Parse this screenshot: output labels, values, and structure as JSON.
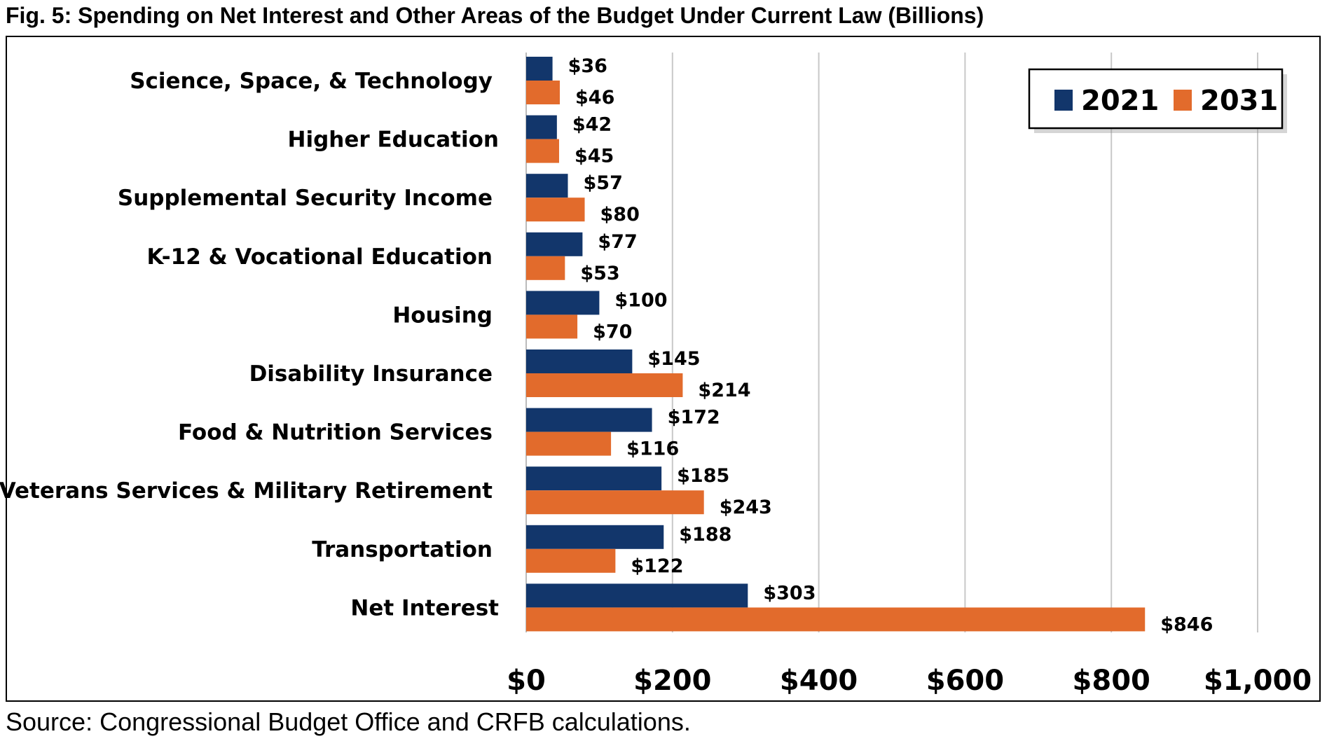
{
  "title": "Fig. 5: Spending on Net Interest and Other Areas of the Budget Under Current Law (Billions)",
  "source": "Source: Congressional Budget Office and CRFB calculations.",
  "chart_data": {
    "type": "bar",
    "orientation": "horizontal",
    "title": "Fig. 5: Spending on Net Interest and Other Areas of the Budget Under Current Law (Billions)",
    "categories": [
      "Science, Space, & Technology",
      "Higher Education",
      "Supplemental Security Income",
      "K-12 & Vocational Education",
      "Housing",
      "Disability Insurance",
      "Food & Nutrition Services",
      "Veterans Services & Military Retirement",
      "Transportation",
      "Net Interest"
    ],
    "series": [
      {
        "name": "2021",
        "color": "#12366b",
        "values": [
          36,
          42,
          57,
          77,
          100,
          145,
          172,
          185,
          188,
          303
        ],
        "labels": [
          "$36",
          "$42",
          "$57",
          "$77",
          "$100",
          "$145",
          "$172",
          "$185",
          "$188",
          "$303"
        ]
      },
      {
        "name": "2031",
        "color": "#e26b2c",
        "values": [
          46,
          45,
          80,
          53,
          70,
          214,
          116,
          243,
          122,
          846
        ],
        "labels": [
          "$46",
          "$45",
          "$80",
          "$53",
          "$70",
          "$214",
          "$116",
          "$243",
          "$122",
          "$846"
        ]
      }
    ],
    "xlim": [
      0,
      1000
    ],
    "xticks": [
      0,
      200,
      400,
      600,
      800,
      1000
    ],
    "xtick_labels": [
      "$0",
      "$200",
      "$400",
      "$600",
      "$800",
      "$1,000"
    ],
    "grid": "vertical",
    "legend": "top-right"
  }
}
